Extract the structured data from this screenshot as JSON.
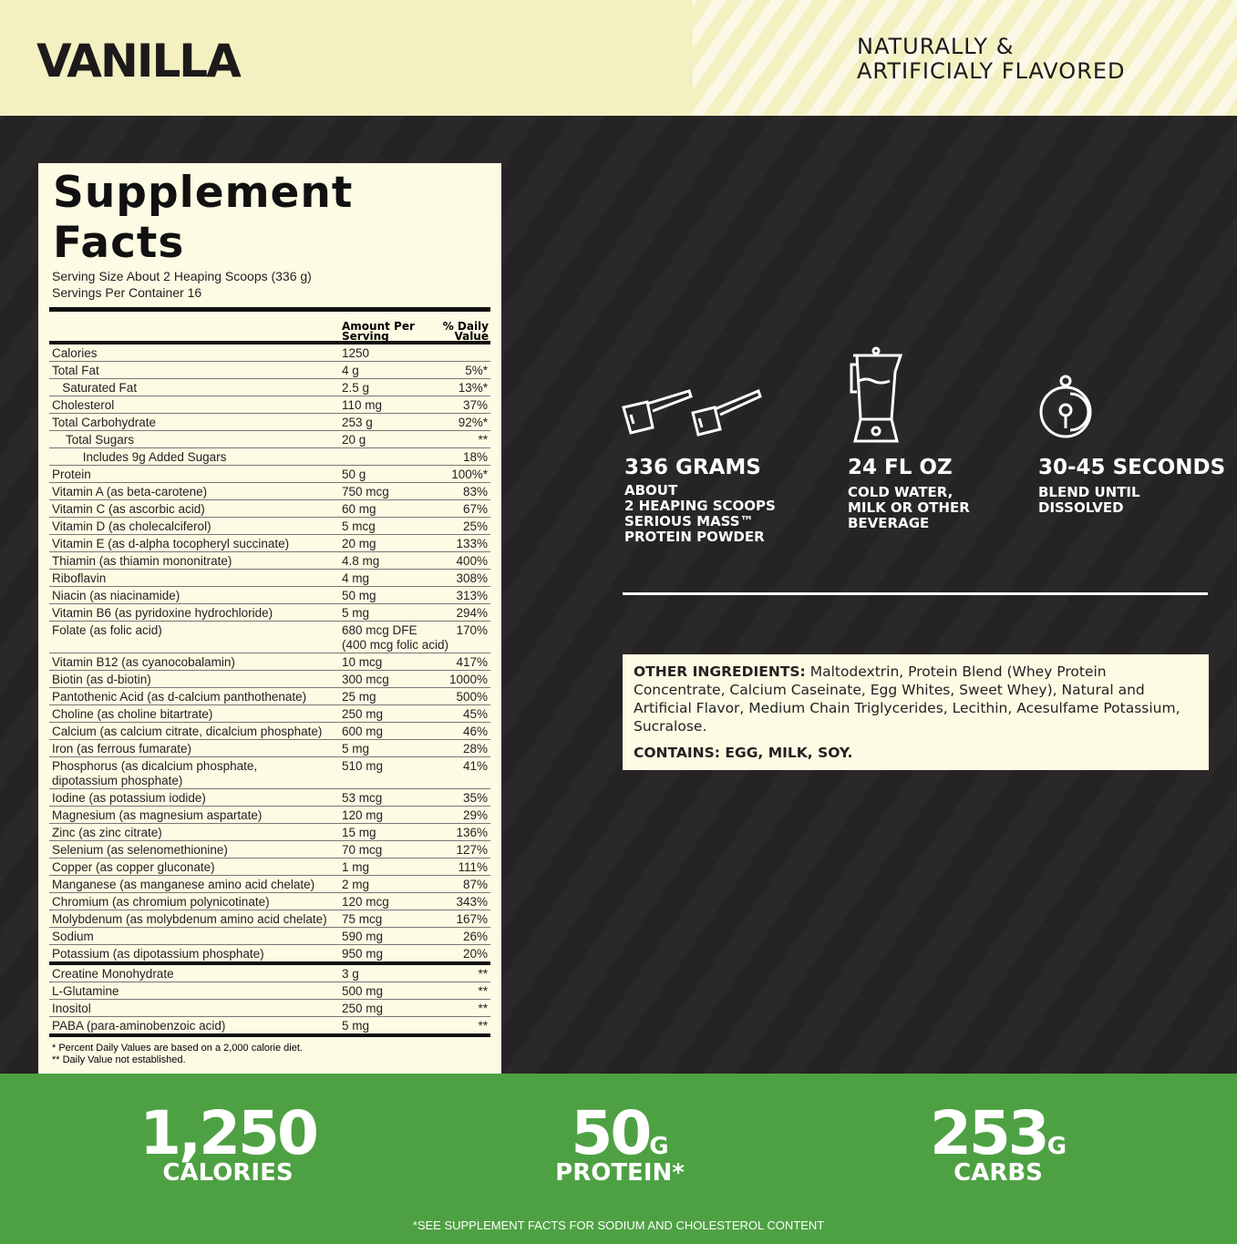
{
  "header": {
    "flavor": "VANILLA",
    "flavored": "NATURALLY &\nARTIFICIALY FLAVORED"
  },
  "facts": {
    "title": "Supplement Facts",
    "serving_size": "Serving Size About 2 Heaping Scoops (336 g)",
    "servings": "Servings Per Container 16",
    "col_amount": "Amount Per\nServing",
    "col_dv": "% Daily\nValue",
    "rows": [
      [
        "Calories",
        "1250",
        ""
      ],
      [
        "Total Fat",
        "4 g",
        "5%*"
      ],
      [
        "   Saturated Fat",
        "2.5 g",
        "13%*"
      ],
      [
        "Cholesterol",
        "110 mg",
        "37%"
      ],
      [
        "Total Carbohydrate",
        "253 g",
        "92%*"
      ],
      [
        "    Total Sugars",
        "20 g",
        "**"
      ],
      [
        "         Includes 9g Added Sugars",
        "",
        "18%"
      ],
      [
        "Protein",
        "50 g",
        "100%*"
      ],
      [
        "Vitamin A (as beta-carotene)",
        "750 mcg",
        "83%"
      ],
      [
        "Vitamin C (as ascorbic acid)",
        "60 mg",
        "67%"
      ],
      [
        "Vitamin D (as cholecalciferol)",
        "5 mcg",
        "25%"
      ],
      [
        "Vitamin E (as d-alpha tocopheryl succinate)",
        "20 mg",
        "133%"
      ],
      [
        "Thiamin (as thiamin mononitrate)",
        "4.8 mg",
        "400%"
      ],
      [
        "Riboflavin",
        "4 mg",
        "308%"
      ],
      [
        "Niacin (as niacinamide)",
        "50 mg",
        "313%"
      ],
      [
        "Vitamin B6 (as pyridoxine hydrochloride)",
        "5 mg",
        "294%"
      ],
      [
        "Folate (as folic acid)",
        "680 mcg DFE\n(400 mcg folic acid)",
        "170%"
      ],
      [
        "Vitamin B12 (as cyanocobalamin)",
        "10 mcg",
        "417%"
      ],
      [
        "Biotin (as d-biotin)",
        "300 mcg",
        "1000%"
      ],
      [
        "Pantothenic Acid (as d-calcium panthothenate)",
        "25 mg",
        "500%"
      ],
      [
        "Choline (as choline bitartrate)",
        "250 mg",
        "45%"
      ],
      [
        "Calcium (as calcium citrate, dicalcium phosphate)",
        "600 mg",
        "46%"
      ],
      [
        "Iron (as ferrous fumarate)",
        "5 mg",
        "28%"
      ],
      [
        "Phosphorus (as dicalcium phosphate,\ndipotassium phosphate)",
        "510 mg",
        "41%"
      ],
      [
        "Iodine (as potassium iodide)",
        "53 mcg",
        "35%"
      ],
      [
        "Magnesium (as magnesium aspartate)",
        "120 mg",
        "29%"
      ],
      [
        "Zinc (as zinc citrate)",
        "15 mg",
        "136%"
      ],
      [
        "Selenium (as selenomethionine)",
        "70 mcg",
        "127%"
      ],
      [
        "Copper (as copper gluconate)",
        "1 mg",
        "111%"
      ],
      [
        "Manganese (as manganese amino acid chelate)",
        "2 mg",
        "87%"
      ],
      [
        "Chromium (as chromium polynicotinate)",
        "120 mcg",
        "343%"
      ],
      [
        "Molybdenum (as molybdenum amino acid chelate)",
        "75 mcg",
        "167%"
      ],
      [
        "Sodium",
        "590 mg",
        "26%"
      ],
      [
        "Potassium (as dipotassium phosphate)",
        "950 mg",
        "20%"
      ]
    ],
    "other_rows": [
      [
        "Creatine Monohydrate",
        "3 g",
        "**"
      ],
      [
        "L-Glutamine",
        "500 mg",
        "**"
      ],
      [
        "Inositol",
        "250 mg",
        "**"
      ],
      [
        "PABA (para-aminobenzoic acid)",
        "5 mg",
        "**"
      ]
    ],
    "footnote1": "* Percent Daily Values are based on a 2,000 calorie diet.",
    "footnote2": "** Daily Value not established."
  },
  "steps": [
    {
      "icon": "scoops-icon",
      "title": "336 GRAMS",
      "text": "ABOUT\n2 HEAPING SCOOPS\nSERIOUS MASS™\nPROTEIN POWDER"
    },
    {
      "icon": "blender-icon",
      "title": "24 FL OZ",
      "text": "COLD WATER,\nMILK OR OTHER\nBEVERAGE"
    },
    {
      "icon": "timer-icon",
      "title": "30-45 SECONDS",
      "text": "BLEND UNTIL\nDISSOLVED"
    }
  ],
  "ingredients": {
    "label": "OTHER INGREDIENTS:",
    "text": " Maltodextrin, Protein Blend (Whey Protein Concentrate, Calcium Caseinate, Egg Whites, Sweet Whey), Natural and Artificial Flavor, Medium Chain Triglycerides, Lecithin, Acesulfame Potassium, Sucralose.",
    "contains": "CONTAINS: EGG, MILK, SOY."
  },
  "highlights": [
    {
      "value": "1,250",
      "unit": "",
      "label": "CALORIES"
    },
    {
      "value": "50",
      "unit": "G",
      "label": "PROTEIN*"
    },
    {
      "value": "253",
      "unit": "G",
      "label": "CARBS"
    }
  ],
  "note": "*SEE SUPPLEMENT FACTS FOR SODIUM AND CHOLESTEROL CONTENT",
  "colors": {
    "top": "#f3f0c2",
    "dark": "#242122",
    "label": "#fdfbe3",
    "green": "#4ea143"
  }
}
